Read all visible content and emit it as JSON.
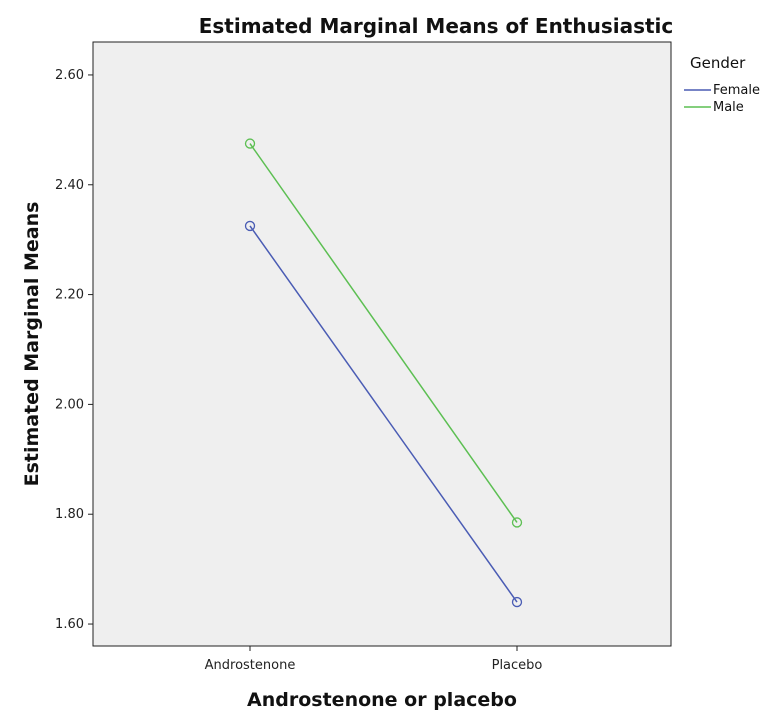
{
  "chart_data": {
    "type": "line",
    "title": "Estimated Marginal Means of Enthusiastic",
    "xlabel": "Androstenone or placebo",
    "ylabel": "Estimated Marginal Means",
    "categories": [
      "Androstenone",
      "Placebo"
    ],
    "ylim": [
      1.56,
      2.66
    ],
    "yticks": [
      "1.60",
      "1.80",
      "2.00",
      "2.20",
      "2.40",
      "2.60"
    ],
    "legend_title": "Gender",
    "legend_position": "right",
    "grid": false,
    "background": "#efefef",
    "series": [
      {
        "name": "Female",
        "color": "#4a5cb4",
        "values": [
          2.325,
          1.64
        ]
      },
      {
        "name": "Male",
        "color": "#5cbf52",
        "values": [
          2.475,
          1.785
        ]
      }
    ]
  }
}
